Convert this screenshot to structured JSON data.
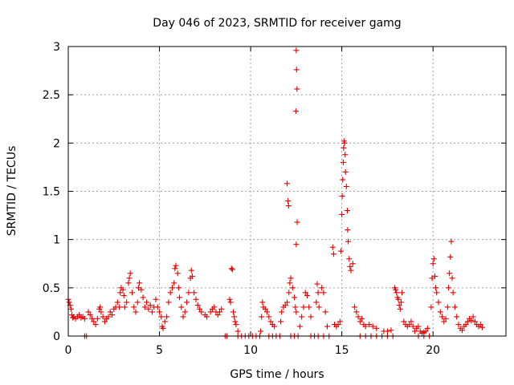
{
  "chart_data": {
    "type": "scatter",
    "title": "Day 046 of 2023, SRMTID for receiver gamg",
    "xlabel": "GPS time / hours",
    "ylabel": "SRMTID / TECUs",
    "xlim": [
      0,
      24
    ],
    "ylim": [
      0,
      3
    ],
    "xticks": [
      0,
      5,
      10,
      15,
      20
    ],
    "xtick_labels": [
      "0",
      "5",
      "10",
      "15",
      "20"
    ],
    "yticks": [
      0,
      0.5,
      1,
      1.5,
      2,
      2.5,
      3
    ],
    "ytick_labels": [
      "0",
      "0.5",
      "1",
      "1.5",
      "2",
      "2.5",
      "3"
    ],
    "grid": true,
    "marker": "+",
    "series": [
      {
        "name": "SRMTID",
        "color": "#e00000",
        "points": [
          [
            0.0,
            0.38
          ],
          [
            0.05,
            0.35
          ],
          [
            0.1,
            0.32
          ],
          [
            0.15,
            0.28
          ],
          [
            0.2,
            0.22
          ],
          [
            0.25,
            0.19
          ],
          [
            0.3,
            0.2
          ],
          [
            0.4,
            0.18
          ],
          [
            0.5,
            0.2
          ],
          [
            0.6,
            0.22
          ],
          [
            0.7,
            0.19
          ],
          [
            0.8,
            0.2
          ],
          [
            0.9,
            0.18
          ],
          [
            0.9,
            0.0
          ],
          [
            1.0,
            0.0
          ],
          [
            1.1,
            0.25
          ],
          [
            1.2,
            0.22
          ],
          [
            1.3,
            0.18
          ],
          [
            1.4,
            0.15
          ],
          [
            1.5,
            0.12
          ],
          [
            1.6,
            0.18
          ],
          [
            1.7,
            0.28
          ],
          [
            1.75,
            0.3
          ],
          [
            1.8,
            0.25
          ],
          [
            1.9,
            0.2
          ],
          [
            2.0,
            0.15
          ],
          [
            2.1,
            0.18
          ],
          [
            2.2,
            0.2
          ],
          [
            2.3,
            0.25
          ],
          [
            2.4,
            0.22
          ],
          [
            2.5,
            0.28
          ],
          [
            2.6,
            0.3
          ],
          [
            2.7,
            0.35
          ],
          [
            2.8,
            0.3
          ],
          [
            2.85,
            0.45
          ],
          [
            2.9,
            0.5
          ],
          [
            3.0,
            0.48
          ],
          [
            3.05,
            0.42
          ],
          [
            3.1,
            0.3
          ],
          [
            3.2,
            0.35
          ],
          [
            3.3,
            0.55
          ],
          [
            3.35,
            0.6
          ],
          [
            3.4,
            0.65
          ],
          [
            3.5,
            0.45
          ],
          [
            3.6,
            0.3
          ],
          [
            3.7,
            0.25
          ],
          [
            3.8,
            0.35
          ],
          [
            3.85,
            0.5
          ],
          [
            3.9,
            0.55
          ],
          [
            4.0,
            0.48
          ],
          [
            4.1,
            0.4
          ],
          [
            4.2,
            0.3
          ],
          [
            4.3,
            0.35
          ],
          [
            4.4,
            0.28
          ],
          [
            4.5,
            0.32
          ],
          [
            4.6,
            0.25
          ],
          [
            4.7,
            0.3
          ],
          [
            4.8,
            0.38
          ],
          [
            4.9,
            0.3
          ],
          [
            5.0,
            0.25
          ],
          [
            5.1,
            0.2
          ],
          [
            5.15,
            0.1
          ],
          [
            5.2,
            0.08
          ],
          [
            5.3,
            0.15
          ],
          [
            5.4,
            0.2
          ],
          [
            5.5,
            0.35
          ],
          [
            5.6,
            0.45
          ],
          [
            5.7,
            0.5
          ],
          [
            5.8,
            0.55
          ],
          [
            5.85,
            0.7
          ],
          [
            5.9,
            0.73
          ],
          [
            6.0,
            0.65
          ],
          [
            6.05,
            0.5
          ],
          [
            6.1,
            0.4
          ],
          [
            6.2,
            0.3
          ],
          [
            6.3,
            0.2
          ],
          [
            6.4,
            0.25
          ],
          [
            6.5,
            0.35
          ],
          [
            6.6,
            0.45
          ],
          [
            6.7,
            0.6
          ],
          [
            6.75,
            0.68
          ],
          [
            6.8,
            0.62
          ],
          [
            6.9,
            0.45
          ],
          [
            7.0,
            0.38
          ],
          [
            7.1,
            0.32
          ],
          [
            7.2,
            0.28
          ],
          [
            7.3,
            0.25
          ],
          [
            7.5,
            0.22
          ],
          [
            7.6,
            0.2
          ],
          [
            7.8,
            0.25
          ],
          [
            7.9,
            0.28
          ],
          [
            8.0,
            0.3
          ],
          [
            8.1,
            0.25
          ],
          [
            8.2,
            0.22
          ],
          [
            8.3,
            0.25
          ],
          [
            8.4,
            0.28
          ],
          [
            8.6,
            0.0
          ],
          [
            8.7,
            0.0
          ],
          [
            8.85,
            0.38
          ],
          [
            8.9,
            0.35
          ],
          [
            8.95,
            0.7
          ],
          [
            9.0,
            0.69
          ],
          [
            9.05,
            0.25
          ],
          [
            9.1,
            0.2
          ],
          [
            9.15,
            0.15
          ],
          [
            9.2,
            0.12
          ],
          [
            9.3,
            0.05
          ],
          [
            9.3,
            0.0
          ],
          [
            9.5,
            0.0
          ],
          [
            9.7,
            0.0
          ],
          [
            9.9,
            0.0
          ],
          [
            10.1,
            0.0
          ],
          [
            10.3,
            0.0
          ],
          [
            10.5,
            0.0
          ],
          [
            10.55,
            0.05
          ],
          [
            10.6,
            0.2
          ],
          [
            10.65,
            0.35
          ],
          [
            10.7,
            0.3
          ],
          [
            10.8,
            0.28
          ],
          [
            10.9,
            0.25
          ],
          [
            11.0,
            0.2
          ],
          [
            11.1,
            0.15
          ],
          [
            11.2,
            0.12
          ],
          [
            11.3,
            0.1
          ],
          [
            11.0,
            0.0
          ],
          [
            11.2,
            0.0
          ],
          [
            11.4,
            0.0
          ],
          [
            11.6,
            0.0
          ],
          [
            11.65,
            0.15
          ],
          [
            11.7,
            0.25
          ],
          [
            11.8,
            0.3
          ],
          [
            11.9,
            0.32
          ],
          [
            12.0,
            0.35
          ],
          [
            12.1,
            0.45
          ],
          [
            12.15,
            0.55
          ],
          [
            12.2,
            0.6
          ],
          [
            12.3,
            0.5
          ],
          [
            12.4,
            0.4
          ],
          [
            12.45,
            0.3
          ],
          [
            12.5,
            0.25
          ],
          [
            12.0,
            1.58
          ],
          [
            12.05,
            1.4
          ],
          [
            12.08,
            1.35
          ],
          [
            12.5,
            2.96
          ],
          [
            12.52,
            2.76
          ],
          [
            12.54,
            2.56
          ],
          [
            12.48,
            2.33
          ],
          [
            12.55,
            1.18
          ],
          [
            12.5,
            0.95
          ],
          [
            12.2,
            0.0
          ],
          [
            12.4,
            0.0
          ],
          [
            12.6,
            0.0
          ],
          [
            12.7,
            0.1
          ],
          [
            12.8,
            0.2
          ],
          [
            12.9,
            0.3
          ],
          [
            13.0,
            0.45
          ],
          [
            13.1,
            0.42
          ],
          [
            13.2,
            0.3
          ],
          [
            13.3,
            0.2
          ],
          [
            13.6,
            0.35
          ],
          [
            13.65,
            0.54
          ],
          [
            13.7,
            0.45
          ],
          [
            13.75,
            0.3
          ],
          [
            13.9,
            0.5
          ],
          [
            14.0,
            0.45
          ],
          [
            14.1,
            0.25
          ],
          [
            14.2,
            0.1
          ],
          [
            13.3,
            0.0
          ],
          [
            13.5,
            0.0
          ],
          [
            13.7,
            0.0
          ],
          [
            14.0,
            0.0
          ],
          [
            14.3,
            0.0
          ],
          [
            14.5,
            0.92
          ],
          [
            14.55,
            0.85
          ],
          [
            14.6,
            0.12
          ],
          [
            14.7,
            0.1
          ],
          [
            14.8,
            0.12
          ],
          [
            14.9,
            0.15
          ],
          [
            14.95,
            0.88
          ],
          [
            15.0,
            1.26
          ],
          [
            15.02,
            1.45
          ],
          [
            15.05,
            1.62
          ],
          [
            15.08,
            1.8
          ],
          [
            15.1,
            1.95
          ],
          [
            15.12,
            2.02
          ],
          [
            15.15,
            2.0
          ],
          [
            15.18,
            1.88
          ],
          [
            15.2,
            1.7
          ],
          [
            15.25,
            1.55
          ],
          [
            15.3,
            1.3
          ],
          [
            15.32,
            1.1
          ],
          [
            15.35,
            0.98
          ],
          [
            15.4,
            0.8
          ],
          [
            15.45,
            0.72
          ],
          [
            15.5,
            0.68
          ],
          [
            15.6,
            0.75
          ],
          [
            15.7,
            0.3
          ],
          [
            15.8,
            0.25
          ],
          [
            15.9,
            0.2
          ],
          [
            16.0,
            0.15
          ],
          [
            16.1,
            0.18
          ],
          [
            16.2,
            0.12
          ],
          [
            16.3,
            0.1
          ],
          [
            16.5,
            0.12
          ],
          [
            16.7,
            0.1
          ],
          [
            16.9,
            0.08
          ],
          [
            16.0,
            0.0
          ],
          [
            16.3,
            0.0
          ],
          [
            16.6,
            0.0
          ],
          [
            16.9,
            0.0
          ],
          [
            17.2,
            0.0
          ],
          [
            17.5,
            0.0
          ],
          [
            17.8,
            0.0
          ],
          [
            17.3,
            0.05
          ],
          [
            17.5,
            0.05
          ],
          [
            17.7,
            0.06
          ],
          [
            17.9,
            0.5
          ],
          [
            17.95,
            0.48
          ],
          [
            18.0,
            0.45
          ],
          [
            18.05,
            0.4
          ],
          [
            18.1,
            0.38
          ],
          [
            18.15,
            0.32
          ],
          [
            18.2,
            0.28
          ],
          [
            18.25,
            0.35
          ],
          [
            18.3,
            0.45
          ],
          [
            18.4,
            0.15
          ],
          [
            18.5,
            0.12
          ],
          [
            18.6,
            0.1
          ],
          [
            18.7,
            0.12
          ],
          [
            18.8,
            0.15
          ],
          [
            18.9,
            0.1
          ],
          [
            19.0,
            0.05
          ],
          [
            19.1,
            0.08
          ],
          [
            19.2,
            0.1
          ],
          [
            19.3,
            0.05
          ],
          [
            19.4,
            0.03
          ],
          [
            19.5,
            0.04
          ],
          [
            19.6,
            0.05
          ],
          [
            19.7,
            0.08
          ],
          [
            19.2,
            0.0
          ],
          [
            19.5,
            0.0
          ],
          [
            19.8,
            0.0
          ],
          [
            19.9,
            0.3
          ],
          [
            19.95,
            0.6
          ],
          [
            20.0,
            0.75
          ],
          [
            20.05,
            0.8
          ],
          [
            20.1,
            0.62
          ],
          [
            20.15,
            0.5
          ],
          [
            20.2,
            0.45
          ],
          [
            20.3,
            0.35
          ],
          [
            20.4,
            0.25
          ],
          [
            20.5,
            0.2
          ],
          [
            20.6,
            0.15
          ],
          [
            20.7,
            0.18
          ],
          [
            20.8,
            0.3
          ],
          [
            20.85,
            0.5
          ],
          [
            20.9,
            0.65
          ],
          [
            20.95,
            0.82
          ],
          [
            21.0,
            0.98
          ],
          [
            21.05,
            0.6
          ],
          [
            21.1,
            0.45
          ],
          [
            21.2,
            0.3
          ],
          [
            21.3,
            0.2
          ],
          [
            21.4,
            0.12
          ],
          [
            21.5,
            0.08
          ],
          [
            21.6,
            0.06
          ],
          [
            21.7,
            0.1
          ],
          [
            21.8,
            0.12
          ],
          [
            21.9,
            0.15
          ],
          [
            22.0,
            0.18
          ],
          [
            22.1,
            0.16
          ],
          [
            22.2,
            0.2
          ],
          [
            22.3,
            0.15
          ],
          [
            22.4,
            0.12
          ],
          [
            22.5,
            0.1
          ],
          [
            22.6,
            0.12
          ],
          [
            22.7,
            0.09
          ]
        ]
      }
    ]
  }
}
